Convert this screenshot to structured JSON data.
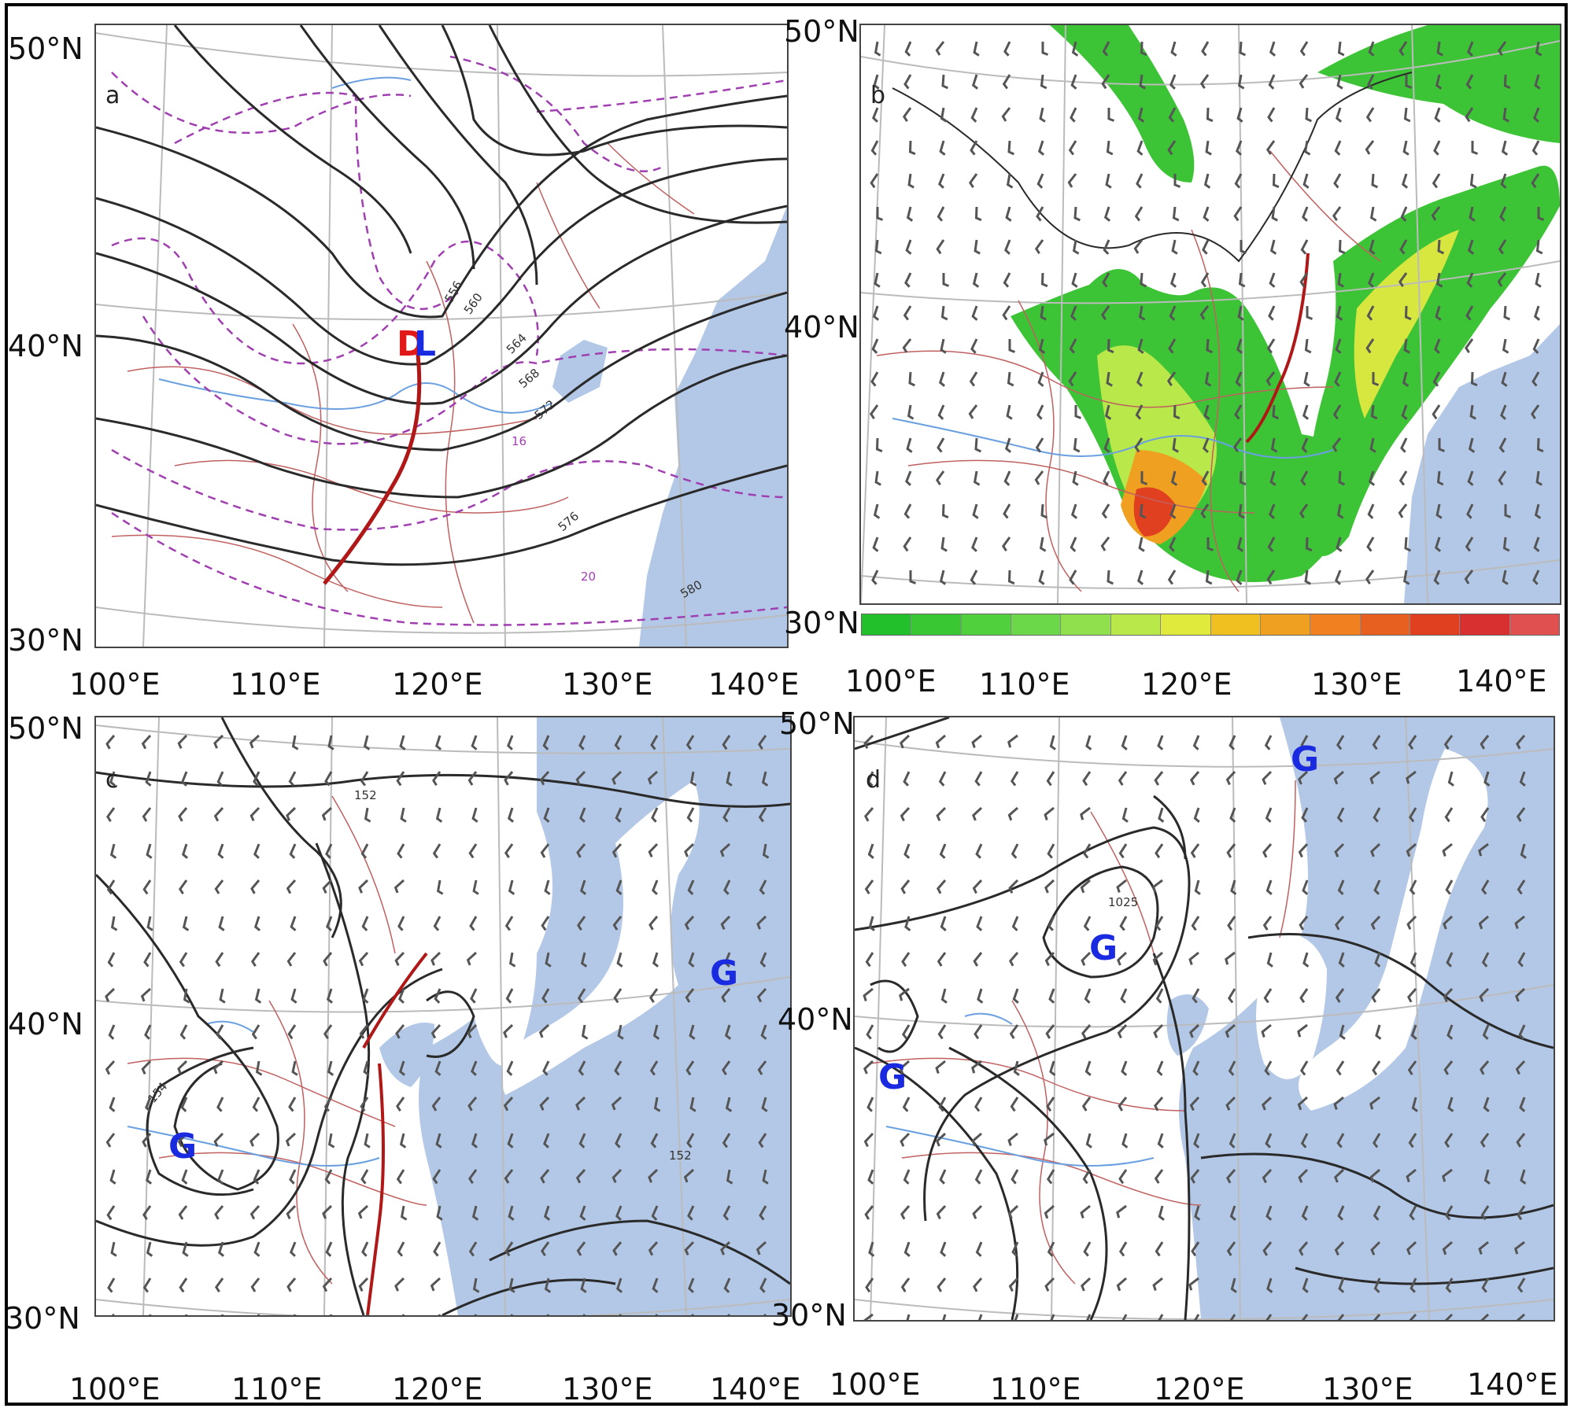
{
  "lat_labels": [
    "50°N",
    "40°N",
    "30°N"
  ],
  "lon_labels": [
    "100°E",
    "110°E",
    "120°E",
    "130°E",
    "140°E"
  ],
  "panels": {
    "a": {
      "letter": "a",
      "low_marks": [
        "D",
        "L"
      ],
      "contour_labels": [
        "556",
        "560",
        "564",
        "568",
        "572",
        "576",
        "580"
      ],
      "temp_labels": [
        "16",
        "20"
      ]
    },
    "b": {
      "letter": "b",
      "colorbar": [
        "#22c02a",
        "#39c833",
        "#4fd03c",
        "#6bd84a",
        "#8fe04c",
        "#b8e84a",
        "#e0ea3c",
        "#f0c020",
        "#f0a020",
        "#f08020",
        "#e86020",
        "#e04020",
        "#d83030",
        "#e05050"
      ]
    },
    "c": {
      "letter": "c",
      "high_marks": [
        "G",
        "G"
      ],
      "contour_labels": [
        "152",
        "152",
        "154"
      ]
    },
    "d": {
      "letter": "d",
      "high_marks": [
        "G",
        "G",
        "G"
      ],
      "contour_labels": [
        "1025"
      ]
    }
  },
  "colors": {
    "sea": "#b2c8e6",
    "contour": "#2a2a2a",
    "trough": "#b01818",
    "dashed": "#a040b0",
    "border": "#c06060",
    "river": "#6aa0e0",
    "high_mark": "#1a2ae0",
    "low_mark_d": "#e01818",
    "low_mark_l": "#1a2ae0"
  }
}
